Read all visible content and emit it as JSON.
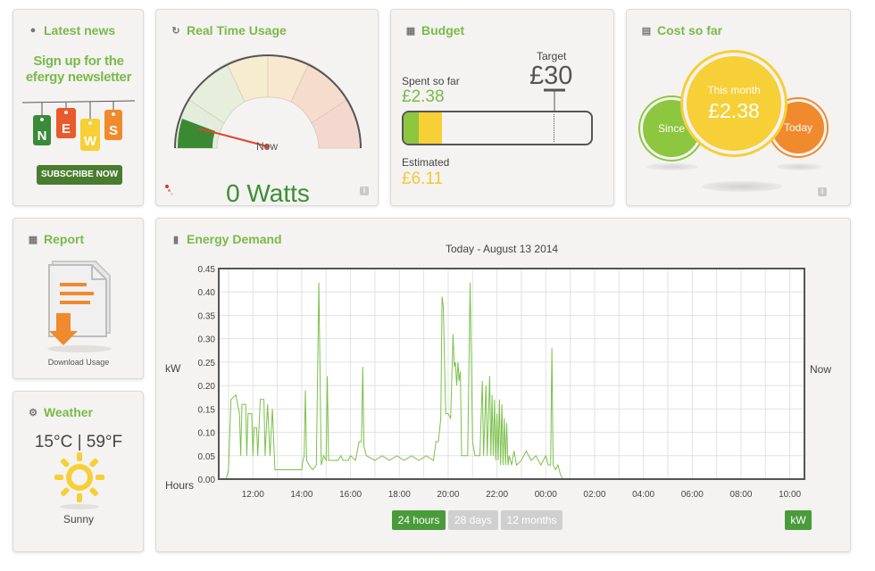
{
  "colors": {
    "accent": "#7bb94a",
    "dark_green": "#4a7c2f",
    "yellow": "#f5c932",
    "orange": "#f08a2c"
  },
  "news": {
    "title": "Latest news",
    "headline_line1": "Sign up for the",
    "headline_line2": "efergy newsletter",
    "tag_letters": [
      "N",
      "E",
      "W",
      "S"
    ],
    "subscribe_label": "SUBSCRIBE NOW"
  },
  "realtime": {
    "title": "Real Time Usage",
    "needle_label": "Now",
    "reading": "0 Watts",
    "gauge_fraction": 0.12
  },
  "budget": {
    "title": "Budget",
    "target_label": "Target",
    "target_value": "£30",
    "spent_label": "Spent so far",
    "spent_value": "£2.38",
    "estimated_label": "Estimated",
    "estimated_value": "£6.11",
    "spent_fraction": 0.079,
    "estimated_fraction": 0.204,
    "target_fraction": 0.8
  },
  "cost": {
    "title": "Cost so far",
    "since_label": "Since",
    "month_label": "This month",
    "month_value": "£2.38",
    "today_label": "Today"
  },
  "report": {
    "title": "Report",
    "download_label": "Download Usage"
  },
  "weather": {
    "title": "Weather",
    "temperature": "15°C | 59°F",
    "condition": "Sunny"
  },
  "energy": {
    "title": "Energy Demand",
    "subtitle": "Today - August 13 2014",
    "right_label": "Now",
    "buttons": [
      {
        "label": "24 hours",
        "active": true
      },
      {
        "label": "28 days",
        "active": false
      },
      {
        "label": "12 months",
        "active": false
      }
    ],
    "unit_button": "kW"
  },
  "chart_data": {
    "type": "line",
    "title": "Today - August 13 2014",
    "xlabel": "Hours",
    "ylabel": "kW",
    "xlim": [
      10.5,
      10.75
    ],
    "ylim": [
      0,
      0.45
    ],
    "x_tick_labels": [
      "12:00",
      "14:00",
      "16:00",
      "18:00",
      "20:00",
      "22:00",
      "00:00",
      "02:00",
      "04:00",
      "06:00",
      "08:00",
      "10:00"
    ],
    "y_tick_labels": [
      "0.00",
      "0.05",
      "0.10",
      "0.15",
      "0.20",
      "0.25",
      "0.30",
      "0.35",
      "0.40",
      "0.45"
    ],
    "grid": true,
    "series": [
      {
        "color": "#7cc04b",
        "points": [
          [
            10.6,
            0.0
          ],
          [
            10.9,
            0.0
          ],
          [
            11.0,
            0.02
          ],
          [
            11.1,
            0.17
          ],
          [
            11.3,
            0.18
          ],
          [
            11.45,
            0.14
          ],
          [
            11.5,
            0.05
          ],
          [
            11.55,
            0.16
          ],
          [
            11.7,
            0.16
          ],
          [
            11.75,
            0.05
          ],
          [
            11.8,
            0.14
          ],
          [
            11.95,
            0.14
          ],
          [
            12.0,
            0.05
          ],
          [
            12.05,
            0.11
          ],
          [
            12.15,
            0.11
          ],
          [
            12.2,
            0.05
          ],
          [
            12.3,
            0.17
          ],
          [
            12.45,
            0.17
          ],
          [
            12.5,
            0.05
          ],
          [
            12.6,
            0.16
          ],
          [
            12.7,
            0.05
          ],
          [
            12.8,
            0.15
          ],
          [
            12.9,
            0.02
          ],
          [
            13.0,
            0.02
          ],
          [
            14.0,
            0.02
          ],
          [
            14.05,
            0.04
          ],
          [
            14.1,
            0.05
          ],
          [
            14.15,
            0.19
          ],
          [
            14.2,
            0.04
          ],
          [
            14.3,
            0.03
          ],
          [
            14.45,
            0.02
          ],
          [
            14.6,
            0.03
          ],
          [
            14.7,
            0.42
          ],
          [
            14.8,
            0.03
          ],
          [
            14.9,
            0.05
          ],
          [
            15.0,
            0.04
          ],
          [
            15.05,
            0.22
          ],
          [
            15.1,
            0.04
          ],
          [
            15.5,
            0.04
          ],
          [
            15.6,
            0.05
          ],
          [
            15.7,
            0.04
          ],
          [
            15.9,
            0.04
          ],
          [
            16.0,
            0.05
          ],
          [
            16.2,
            0.04
          ],
          [
            16.35,
            0.08
          ],
          [
            16.45,
            0.08
          ],
          [
            16.5,
            0.24
          ],
          [
            16.55,
            0.07
          ],
          [
            16.65,
            0.05
          ],
          [
            17.0,
            0.04
          ],
          [
            17.3,
            0.05
          ],
          [
            17.6,
            0.04
          ],
          [
            17.9,
            0.05
          ],
          [
            18.2,
            0.04
          ],
          [
            18.5,
            0.05
          ],
          [
            18.8,
            0.04
          ],
          [
            19.1,
            0.05
          ],
          [
            19.4,
            0.04
          ],
          [
            19.5,
            0.08
          ],
          [
            19.6,
            0.08
          ],
          [
            19.7,
            0.13
          ],
          [
            19.75,
            0.39
          ],
          [
            19.8,
            0.37
          ],
          [
            19.9,
            0.14
          ],
          [
            20.0,
            0.14
          ],
          [
            20.1,
            0.13
          ],
          [
            20.2,
            0.31
          ],
          [
            20.25,
            0.24
          ],
          [
            20.3,
            0.25
          ],
          [
            20.35,
            0.2
          ],
          [
            20.4,
            0.25
          ],
          [
            20.45,
            0.21
          ],
          [
            20.5,
            0.23
          ],
          [
            20.55,
            0.05
          ],
          [
            20.65,
            0.05
          ],
          [
            20.8,
            0.05
          ],
          [
            20.9,
            0.42
          ],
          [
            21.0,
            0.08
          ],
          [
            21.1,
            0.05
          ],
          [
            21.2,
            0.05
          ],
          [
            21.3,
            0.05
          ],
          [
            21.4,
            0.21
          ],
          [
            21.45,
            0.05
          ],
          [
            21.55,
            0.2
          ],
          [
            21.6,
            0.05
          ],
          [
            21.7,
            0.22
          ],
          [
            21.75,
            0.05
          ],
          [
            21.8,
            0.18
          ],
          [
            21.85,
            0.05
          ],
          [
            21.9,
            0.17
          ],
          [
            21.95,
            0.04
          ],
          [
            22.0,
            0.14
          ],
          [
            22.05,
            0.04
          ],
          [
            22.1,
            0.17
          ],
          [
            22.15,
            0.03
          ],
          [
            22.2,
            0.16
          ],
          [
            22.25,
            0.03
          ],
          [
            22.3,
            0.13
          ],
          [
            22.35,
            0.03
          ],
          [
            22.4,
            0.12
          ],
          [
            22.45,
            0.03
          ],
          [
            22.5,
            0.05
          ],
          [
            22.6,
            0.03
          ],
          [
            22.7,
            0.06
          ],
          [
            22.8,
            0.03
          ],
          [
            23.0,
            0.04
          ],
          [
            23.2,
            0.06
          ],
          [
            23.4,
            0.04
          ],
          [
            23.6,
            0.05
          ],
          [
            23.8,
            0.03
          ],
          [
            24.0,
            0.05
          ],
          [
            24.1,
            0.03
          ],
          [
            24.2,
            0.03
          ],
          [
            24.25,
            0.28
          ],
          [
            24.3,
            0.03
          ],
          [
            24.4,
            0.02
          ],
          [
            24.5,
            0.03
          ],
          [
            24.6,
            0.01
          ],
          [
            24.7,
            0.0
          ],
          [
            34.6,
            0.0
          ]
        ]
      }
    ]
  }
}
